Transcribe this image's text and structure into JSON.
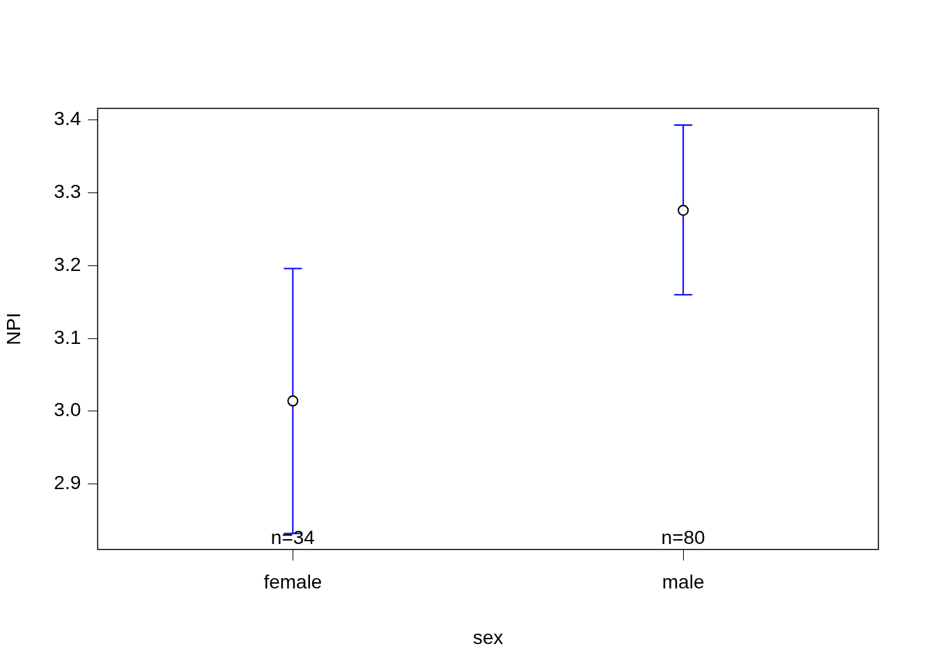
{
  "chart_data": {
    "type": "scatter",
    "xlabel": "sex",
    "ylabel": "NPI",
    "categories": [
      "female",
      "male"
    ],
    "values": [
      3.014,
      3.276
    ],
    "errors": [
      [
        2.832,
        3.196
      ],
      [
        3.16,
        3.393
      ]
    ],
    "color": "#000000",
    "marker": "circle",
    "ylim": [
      2.81,
      3.416
    ],
    "yticks": [
      2.9,
      {
        "value": 3.0,
        "label": "3.0"
      },
      3.1,
      3.2,
      3.3,
      3.4
    ],
    "annotations": [
      "n=34",
      "n=80"
    ]
  }
}
